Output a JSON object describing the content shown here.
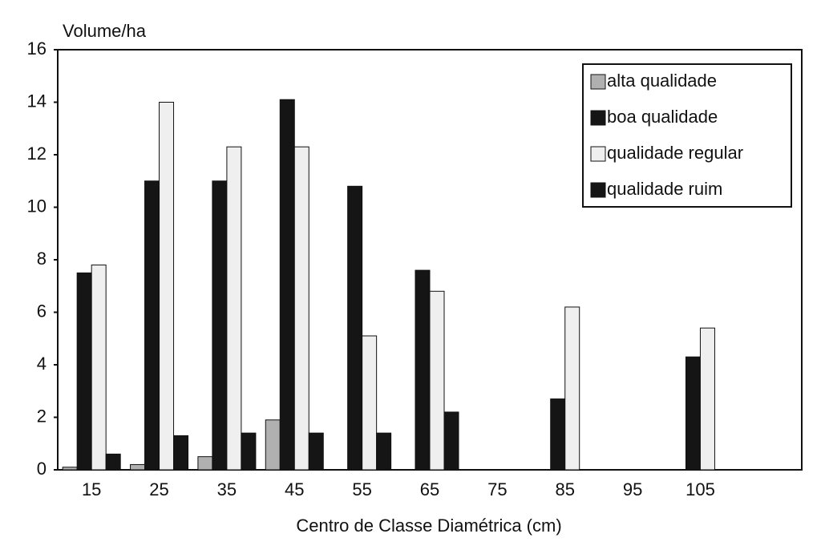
{
  "chart_data": {
    "type": "bar",
    "y_label": "Volume/ha",
    "x_label": "Centro de Classe Diamétrica (cm)",
    "categories": [
      "15",
      "25",
      "35",
      "45",
      "55",
      "65",
      "75",
      "85",
      "95",
      "105",
      null
    ],
    "series": [
      {
        "name": "alta qualidade",
        "color": "#b0b0b0",
        "values": [
          0.1,
          0.2,
          0.5,
          1.9,
          0,
          0,
          0,
          0,
          0,
          0,
          null
        ]
      },
      {
        "name": "boa qualidade",
        "color": "#151515",
        "values": [
          7.5,
          11.0,
          11.0,
          14.1,
          10.8,
          7.6,
          0,
          2.7,
          0,
          4.3,
          null
        ]
      },
      {
        "name": "qualidade regular",
        "color": "#efefef",
        "values": [
          7.8,
          14.0,
          12.3,
          12.3,
          5.1,
          6.8,
          0,
          6.2,
          0,
          5.4,
          null
        ]
      },
      {
        "name": "qualidade ruim",
        "color": "#151515",
        "values": [
          0.6,
          1.3,
          1.4,
          1.4,
          1.4,
          2.2,
          0,
          0,
          0,
          0,
          null
        ]
      }
    ],
    "ylim": [
      0,
      16
    ],
    "yticks": [
      0,
      2,
      4,
      6,
      8,
      10,
      12,
      14,
      16
    ],
    "grid": false,
    "legend": "upper right"
  }
}
